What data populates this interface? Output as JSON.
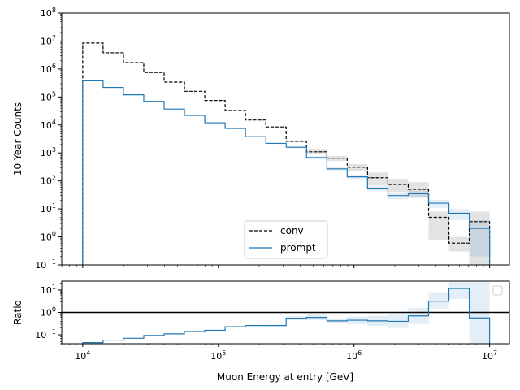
{
  "figure": {
    "xlabel": "Muon Energy at entry [GeV]"
  },
  "chart_data": [
    {
      "type": "line",
      "panel": "counts",
      "title": "",
      "xlabel": "",
      "ylabel": "10 Year Counts",
      "xscale": "log",
      "yscale": "log",
      "xlim": [
        7000,
        14000000
      ],
      "ylim": [
        0.1,
        100000000
      ],
      "x_ticks": [
        {
          "value": 10000,
          "base": "10",
          "exp": "4"
        },
        {
          "value": 100000,
          "base": "10",
          "exp": "5"
        },
        {
          "value": 1000000,
          "base": "10",
          "exp": "6"
        },
        {
          "value": 10000000,
          "base": "10",
          "exp": "7"
        }
      ],
      "y_ticks": [
        {
          "value": 0.1,
          "base": "10",
          "exp": "−1"
        },
        {
          "value": 1,
          "base": "10",
          "exp": "0"
        },
        {
          "value": 10,
          "base": "10",
          "exp": "1"
        },
        {
          "value": 100,
          "base": "10",
          "exp": "2"
        },
        {
          "value": 1000,
          "base": "10",
          "exp": "3"
        },
        {
          "value": 10000,
          "base": "10",
          "exp": "4"
        },
        {
          "value": 100000,
          "base": "10",
          "exp": "5"
        },
        {
          "value": 1000000,
          "base": "10",
          "exp": "6"
        },
        {
          "value": 10000000,
          "base": "10",
          "exp": "7"
        },
        {
          "value": 100000000,
          "base": "10",
          "exp": "8"
        }
      ],
      "bin_edges": [
        10000,
        14125,
        19953,
        28184,
        39811,
        56234,
        79433,
        112202,
        158489,
        223872,
        316228,
        446684,
        630957,
        891251,
        1258925,
        1778279,
        2511886,
        3548134,
        5011872,
        7079458,
        10000000
      ],
      "series": [
        {
          "name": "conv",
          "style": "dashed",
          "color": "#000000",
          "values": [
            8500000,
            3800000,
            1700000,
            750000,
            340000,
            160000,
            75000,
            33000,
            15000,
            8500,
            2600,
            1100,
            650,
            310,
            130,
            75,
            50,
            5,
            0.6,
            3.5
          ],
          "band_low": [
            8400000,
            3750000,
            1680000,
            740000,
            335000,
            157000,
            73500,
            32300,
            14600,
            8200,
            2350,
            900,
            520,
            230,
            70,
            40,
            25,
            0.8,
            0.3,
            0.1
          ],
          "band_high": [
            8600000,
            3850000,
            1720000,
            760000,
            345000,
            163000,
            76500,
            33700,
            15400,
            8800,
            2850,
            1400,
            780,
            400,
            200,
            120,
            90,
            8,
            1,
            8
          ]
        },
        {
          "name": "prompt",
          "style": "solid",
          "color": "#1f77b4",
          "values": [
            380000,
            220000,
            120000,
            70000,
            37000,
            22000,
            12000,
            7500,
            3800,
            2200,
            1600,
            680,
            270,
            140,
            55,
            30,
            35,
            16,
            7,
            2
          ],
          "band_low": [
            376000,
            217000,
            118000,
            68800,
            36300,
            21500,
            11700,
            7300,
            3650,
            2100,
            1450,
            600,
            230,
            115,
            42,
            22,
            25,
            11,
            4,
            0.2
          ],
          "band_high": [
            384000,
            223000,
            122000,
            71200,
            37700,
            22500,
            12300,
            7700,
            3950,
            2300,
            1750,
            760,
            310,
            165,
            68,
            38,
            45,
            21,
            10,
            4
          ]
        }
      ],
      "legend": {
        "position": "lower-center",
        "entries": [
          "conv",
          "prompt"
        ]
      }
    },
    {
      "type": "line",
      "panel": "ratio",
      "title": "",
      "xlabel": "Muon Energy at entry [GeV]",
      "ylabel": "Ratio",
      "xscale": "log",
      "yscale": "log",
      "xlim": [
        7000,
        14000000
      ],
      "ylim": [
        0.04,
        25
      ],
      "reference_line": 1,
      "y_ticks": [
        {
          "value": 0.1,
          "base": "10",
          "exp": "−1"
        },
        {
          "value": 1,
          "base": "10",
          "exp": "0"
        },
        {
          "value": 10,
          "base": "10",
          "exp": "1"
        }
      ],
      "bin_edges": [
        10000,
        14125,
        19953,
        28184,
        39811,
        56234,
        79433,
        112202,
        158489,
        223872,
        316228,
        446684,
        630957,
        891251,
        1258925,
        1778279,
        2511886,
        3548134,
        5011872,
        7079458,
        10000000
      ],
      "series": [
        {
          "name": "",
          "style": "solid",
          "color": "#1f77b4",
          "values": [
            0.045,
            0.058,
            0.07,
            0.093,
            0.11,
            0.14,
            0.16,
            0.23,
            0.26,
            0.26,
            0.55,
            0.6,
            0.42,
            0.45,
            0.42,
            0.4,
            0.7,
            3.2,
            11.7,
            0.57
          ],
          "band_low": [
            0.044,
            0.057,
            0.069,
            0.091,
            0.108,
            0.137,
            0.157,
            0.22,
            0.25,
            0.24,
            0.45,
            0.45,
            0.32,
            0.3,
            0.25,
            0.2,
            0.3,
            1.5,
            4,
            0.03
          ],
          "band_high": [
            0.046,
            0.059,
            0.071,
            0.095,
            0.112,
            0.143,
            0.163,
            0.24,
            0.27,
            0.28,
            0.68,
            0.8,
            0.55,
            0.65,
            0.7,
            0.8,
            1.6,
            8,
            25,
            25
          ]
        }
      ],
      "legend": {
        "position": "upper-right",
        "entries": []
      }
    }
  ]
}
